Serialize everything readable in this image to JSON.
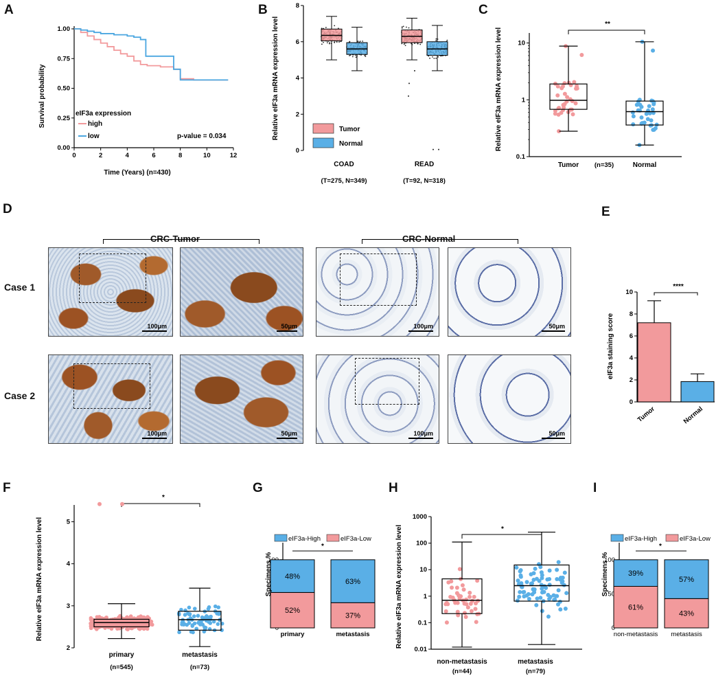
{
  "panels": {
    "A": "A",
    "B": "B",
    "C": "C",
    "D": "D",
    "E": "E",
    "F": "F",
    "G": "G",
    "H": "H",
    "I": "I"
  },
  "colors": {
    "tumor": "#f29a9c",
    "normal": "#5aafe6",
    "high": "#f29a9c",
    "low": "#4aa6e0",
    "stainBrown": "#8a4a1e",
    "stainBlue": "#4c66a8"
  },
  "chart_data": [
    {
      "panel": "A",
      "type": "line",
      "title": "",
      "xlabel": "Time (Years)  (n=430)",
      "ylabel": "Survival probability",
      "xlim": [
        0,
        12
      ],
      "ylim": [
        0,
        1
      ],
      "xticks": [
        "0",
        "2",
        "4",
        "6",
        "8",
        "10",
        "12"
      ],
      "yticks": [
        "0.00",
        "0.25",
        "0.50",
        "0.75",
        "1.00"
      ],
      "legend_title": "eIF3a expression",
      "annotation": "p-value = 0.034",
      "series": [
        {
          "name": "high",
          "color": "#f29a9c",
          "x": [
            0,
            0.5,
            1,
            1.5,
            2,
            2.5,
            3,
            3.5,
            4,
            4.5,
            5,
            5.5,
            6,
            6.5,
            7,
            7.5,
            8,
            9,
            10,
            11.6
          ],
          "y": [
            1.0,
            0.97,
            0.94,
            0.91,
            0.88,
            0.85,
            0.82,
            0.79,
            0.77,
            0.73,
            0.7,
            0.69,
            0.69,
            0.68,
            0.68,
            0.66,
            0.58,
            0.57,
            0.57,
            0.57
          ]
        },
        {
          "name": "low",
          "color": "#4aa6e0",
          "x": [
            0,
            0.5,
            1,
            1.5,
            2,
            3,
            4,
            4.5,
            5,
            5.4,
            6,
            6.5,
            7,
            7.5,
            8,
            9,
            10,
            11.6
          ],
          "y": [
            1.0,
            0.99,
            0.98,
            0.97,
            0.96,
            0.95,
            0.94,
            0.93,
            0.91,
            0.77,
            0.77,
            0.77,
            0.77,
            0.66,
            0.57,
            0.57,
            0.57,
            0.57
          ]
        }
      ]
    },
    {
      "panel": "B",
      "type": "box",
      "ylabel": "Relative eIF3a mRNA expression level",
      "ylim": [
        0,
        8
      ],
      "yticks": [
        "0",
        "2",
        "4",
        "6",
        "8"
      ],
      "categories": [
        "COAD",
        "READ"
      ],
      "category_sublabels": [
        "(T=275, N=349)",
        "(T=92, N=318)"
      ],
      "legend": [
        "Tumor",
        "Normal"
      ],
      "series": [
        {
          "name": "Tumor",
          "boxes": [
            {
              "min": 5.0,
              "q1": 6.05,
              "median": 6.35,
              "q3": 6.7,
              "max": 7.4
            },
            {
              "min": 5.0,
              "q1": 5.95,
              "median": 6.3,
              "q3": 6.65,
              "max": 7.3
            }
          ]
        },
        {
          "name": "Normal",
          "boxes": [
            {
              "min": 4.4,
              "q1": 5.3,
              "median": 5.6,
              "q3": 5.95,
              "max": 6.8
            },
            {
              "min": 4.4,
              "q1": 5.25,
              "median": 5.6,
              "q3": 6.0,
              "max": 6.9
            }
          ]
        }
      ]
    },
    {
      "panel": "C",
      "type": "box_scatter",
      "scale": "log",
      "ylabel": "Relative eIF3a mRNA expression level",
      "ylim": [
        0.1,
        15
      ],
      "yticks": [
        "0.1",
        "1",
        "10"
      ],
      "categories": [
        "Tumor",
        "Normal"
      ],
      "n_label": "(n=35)",
      "significance": "**",
      "boxes": [
        {
          "min": 0.28,
          "q1": 0.68,
          "median": 0.98,
          "q3": 1.9,
          "max": 8.8
        },
        {
          "min": 0.16,
          "q1": 0.36,
          "median": 0.62,
          "q3": 0.95,
          "max": 10.5
        }
      ]
    },
    {
      "panel": "E",
      "type": "bar",
      "ylabel": "eIF3a staining score",
      "ylim": [
        0,
        10
      ],
      "yticks": [
        "0",
        "2",
        "4",
        "6",
        "8",
        "10"
      ],
      "categories": [
        "Tumor",
        "Normal"
      ],
      "values": [
        7.2,
        1.85
      ],
      "errors": [
        2.0,
        0.7
      ],
      "significance": "****"
    },
    {
      "panel": "F",
      "type": "box_scatter",
      "ylabel": "Relative eIF3a mRNA expression level",
      "ylim": [
        2,
        5.4
      ],
      "yticks": [
        "2",
        "3",
        "4",
        "5"
      ],
      "categories": [
        "primary",
        "metastasis"
      ],
      "sublabels": [
        "(n=545)",
        "(n=73)"
      ],
      "significance": "*",
      "boxes": [
        {
          "min": 2.22,
          "q1": 2.5,
          "median": 2.6,
          "q3": 2.68,
          "max": 3.05
        },
        {
          "min": 2.03,
          "q1": 2.42,
          "median": 2.67,
          "q3": 2.87,
          "max": 3.42
        }
      ]
    },
    {
      "panel": "G",
      "type": "stacked_bar",
      "ylabel": "Specimens %",
      "ylim": [
        0,
        100
      ],
      "yticks": [
        "0",
        "50",
        "100"
      ],
      "categories": [
        "primary",
        "metastasis"
      ],
      "legend": [
        "eIF3a-High",
        "eIF3a-Low"
      ],
      "significance": "*",
      "series": [
        {
          "name": "eIF3a-Low",
          "values": [
            52,
            37
          ],
          "labels": [
            "52%",
            "37%"
          ]
        },
        {
          "name": "eIF3a-High",
          "values": [
            48,
            63
          ],
          "labels": [
            "48%",
            "63%"
          ]
        }
      ]
    },
    {
      "panel": "H",
      "type": "box_scatter",
      "scale": "log",
      "ylabel": "Relative eIF3a mRNA expression level",
      "ylim": [
        0.01,
        1000
      ],
      "yticks": [
        "0.01",
        "0.1",
        "1",
        "10",
        "100",
        "1000"
      ],
      "categories": [
        "non-metastasis",
        "metastasis"
      ],
      "sublabels": [
        "(n=44)",
        "(n=79)"
      ],
      "significance": "*",
      "boxes": [
        {
          "min": 0.012,
          "q1": 0.22,
          "median": 0.7,
          "q3": 4.5,
          "max": 110
        },
        {
          "min": 0.015,
          "q1": 0.65,
          "median": 2.5,
          "q3": 15,
          "max": 260
        }
      ]
    },
    {
      "panel": "I",
      "type": "stacked_bar",
      "ylabel": "Specimens %",
      "ylim": [
        0,
        100
      ],
      "yticks": [
        "0",
        "50",
        "100"
      ],
      "categories": [
        "non-metastasis",
        "metastasis"
      ],
      "legend": [
        "eIF3a-High",
        "eIF3a-Low"
      ],
      "significance": "*",
      "series": [
        {
          "name": "eIF3a-Low",
          "values": [
            61,
            43
          ],
          "labels": [
            "61%",
            "43%"
          ]
        },
        {
          "name": "eIF3a-High",
          "values": [
            39,
            57
          ],
          "labels": [
            "39%",
            "57%"
          ]
        }
      ]
    }
  ],
  "histology": {
    "group_tumor": "CRC-Tumor",
    "group_normal": "CRC-Normal",
    "cases": [
      "Case 1",
      "Case 2"
    ],
    "scalebars": [
      "100μm",
      "50μm",
      "100μm",
      "50μm"
    ]
  }
}
